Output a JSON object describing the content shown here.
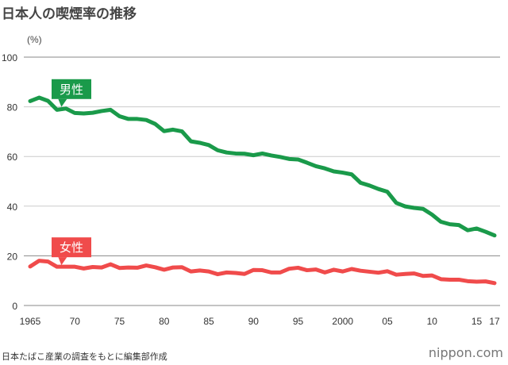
{
  "chart_data": {
    "type": "line",
    "title": "日本人の喫煙率の推移",
    "ylabel": "(%)",
    "xlabel": "",
    "ylim": [
      0,
      100
    ],
    "yticks": [
      0,
      20,
      40,
      60,
      80,
      100
    ],
    "xlim": [
      1965,
      2017
    ],
    "xticks": [
      {
        "value": 1965,
        "label": "1965"
      },
      {
        "value": 1970,
        "label": "70"
      },
      {
        "value": 1975,
        "label": "75"
      },
      {
        "value": 1980,
        "label": "80"
      },
      {
        "value": 1985,
        "label": "85"
      },
      {
        "value": 1990,
        "label": "90"
      },
      {
        "value": 1995,
        "label": "95"
      },
      {
        "value": 2000,
        "label": "2000"
      },
      {
        "value": 2005,
        "label": "05"
      },
      {
        "value": 2010,
        "label": "10"
      },
      {
        "value": 2015,
        "label": "15"
      },
      {
        "value": 2017,
        "label": "17"
      }
    ],
    "grid": true,
    "x_start": 1965,
    "series": [
      {
        "name": "男性",
        "color": "#1a9a4a",
        "label_year": 1968.5,
        "values": [
          82.3,
          83.7,
          82.4,
          78.8,
          79.3,
          77.5,
          77.3,
          77.6,
          78.3,
          78.8,
          76.2,
          75.1,
          75.1,
          74.7,
          73.1,
          70.2,
          70.8,
          70.1,
          66.1,
          65.5,
          64.6,
          62.5,
          61.6,
          61.2,
          61.1,
          60.5,
          61.2,
          60.4,
          59.8,
          59.0,
          58.8,
          57.5,
          56.1,
          55.2,
          54.0,
          53.5,
          52.8,
          49.4,
          48.3,
          46.9,
          45.8,
          41.3,
          39.9,
          39.3,
          38.9,
          36.6,
          33.7,
          32.7,
          32.4,
          30.3,
          31.0,
          29.7,
          28.2
        ]
      },
      {
        "name": "女性",
        "color": "#f04b4b",
        "label_year": 1968.5,
        "values": [
          15.7,
          18.0,
          17.7,
          15.6,
          15.6,
          15.6,
          14.9,
          15.5,
          15.3,
          16.6,
          15.1,
          15.3,
          15.2,
          16.1,
          15.4,
          14.4,
          15.3,
          15.4,
          13.7,
          14.1,
          13.7,
          12.6,
          13.3,
          13.1,
          12.7,
          14.3,
          14.2,
          13.3,
          13.3,
          14.8,
          15.2,
          14.2,
          14.5,
          13.3,
          14.4,
          13.7,
          14.7,
          14.0,
          13.6,
          13.2,
          13.8,
          12.4,
          12.7,
          12.9,
          11.9,
          12.1,
          10.6,
          10.4,
          10.4,
          9.8,
          9.6,
          9.7,
          9.0
        ]
      }
    ]
  },
  "source": "日本たばこ産業の調査をもとに編集部作成",
  "logo": "nippon.com"
}
